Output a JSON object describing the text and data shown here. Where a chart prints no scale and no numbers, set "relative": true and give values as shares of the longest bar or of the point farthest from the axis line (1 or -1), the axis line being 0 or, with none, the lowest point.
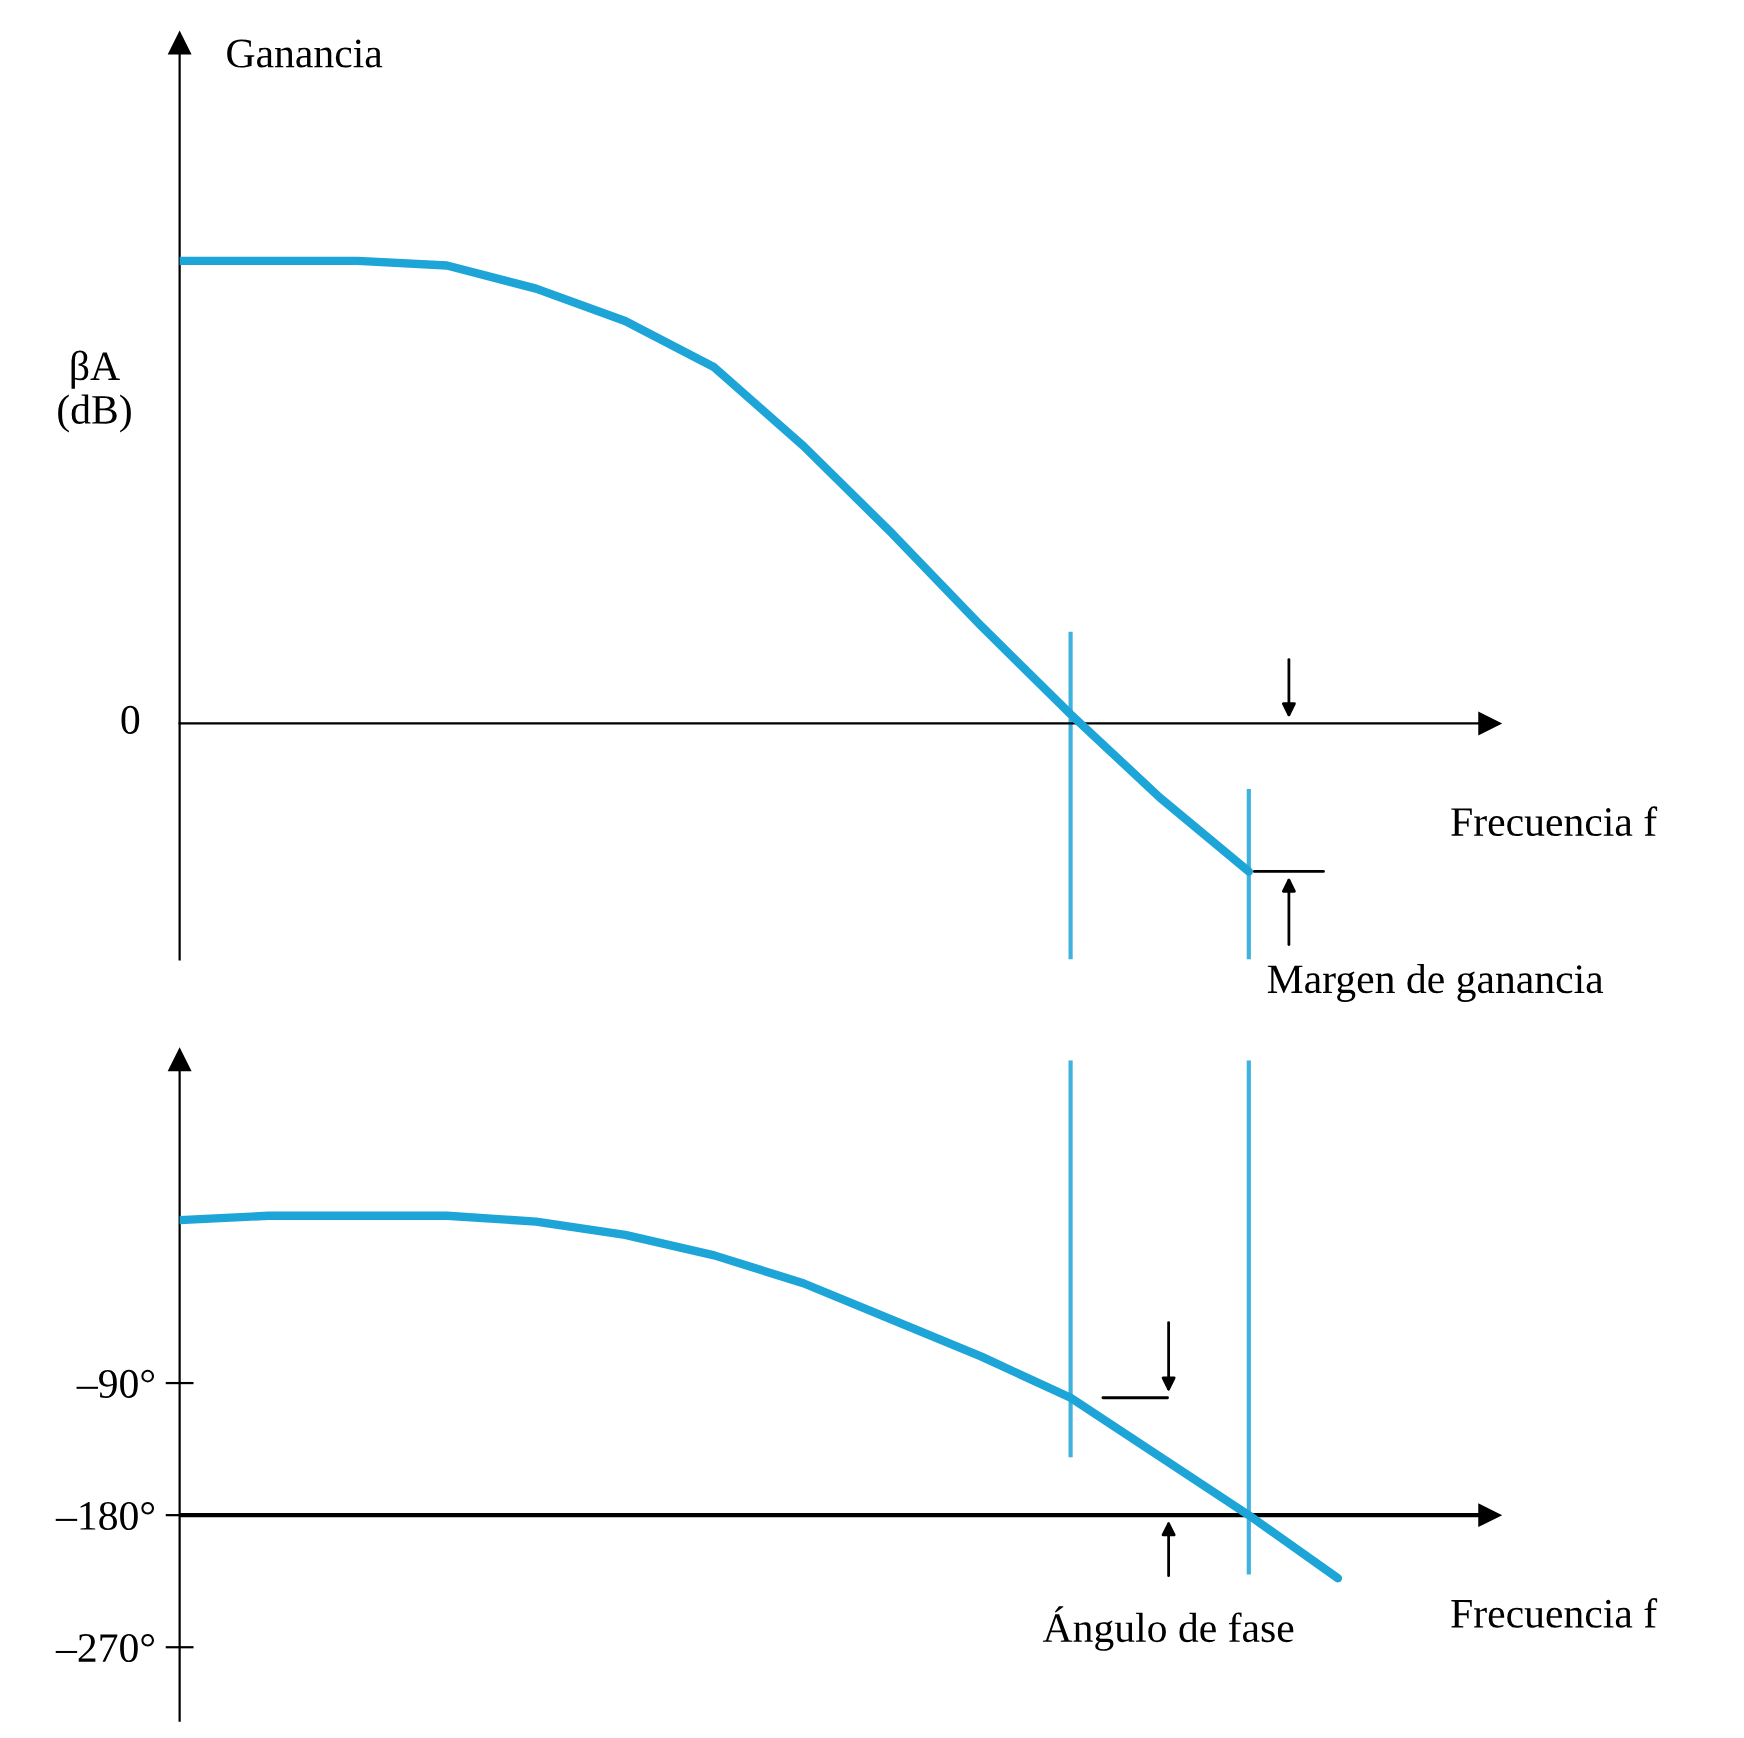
{
  "chart_data": [
    {
      "type": "line",
      "title": "Ganancia",
      "ylabel": "βA\n(dB)",
      "xlabel": "Frecuencia f",
      "relative": true,
      "tick_labels": false,
      "categories": [
        null,
        null,
        null,
        null,
        null,
        null,
        null,
        null,
        null,
        null,
        null,
        null,
        null,
        null
      ],
      "series": [
        {
          "color": "#1ea5d8",
          "values": [
            1,
            1,
            1,
            0.99,
            0.94,
            0.87,
            0.77,
            0.6,
            0.41,
            0.21,
            0.02,
            -0.16,
            -0.32,
            null
          ]
        }
      ],
      "annotations": [
        "0",
        "Margen de ganancia"
      ],
      "grid": false
    },
    {
      "type": "line",
      "xlabel": "Frecuencia f",
      "tick_labels": "y",
      "categories": [
        null,
        null,
        null,
        null,
        null,
        null,
        null,
        null,
        null,
        null,
        null,
        null,
        null,
        null
      ],
      "series": [
        {
          "color": "#1ea5d8",
          "values": [
            21,
            24,
            24,
            24,
            20,
            11,
            -3,
            -22,
            -47,
            -72,
            -100,
            -140,
            -180,
            -223
          ]
        }
      ],
      "ylim": [
        -320,
        130
      ],
      "yticks": [
        {
          "value": -90,
          "label": "–90°"
        },
        {
          "value": -180,
          "label": "–180°"
        },
        {
          "value": -270,
          "label": "–270°"
        }
      ],
      "ref_lines": [
        {
          "axis": "y",
          "value": -180,
          "color": "#000000"
        }
      ],
      "annotations": [
        "Ángulo de fase"
      ],
      "grid": false
    }
  ]
}
